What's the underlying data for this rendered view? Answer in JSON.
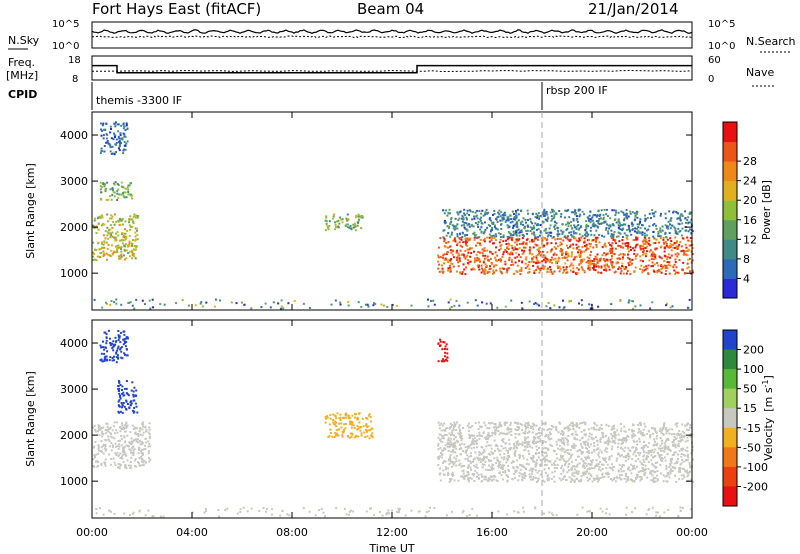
{
  "title": {
    "station": "Fort Hays East (fitACF)",
    "beam": "Beam 04",
    "date": "21/Jan/2014"
  },
  "noise_panel": {
    "left_label": "N.Sky",
    "left_ticks": [
      "10^5",
      "10^0"
    ],
    "right_ticks": [
      "10^5",
      "10^0"
    ],
    "right_label": "N.Search"
  },
  "freq_panel": {
    "left_label_1": "Freq.",
    "left_label_2": "[MHz]",
    "left_ticks": [
      "18",
      "8"
    ],
    "right_ticks": [
      "60",
      "0"
    ],
    "right_label": "Nave"
  },
  "cpid": {
    "label": "CPID",
    "modes": [
      {
        "name": "themis -3300 IF",
        "start_hour": 0
      },
      {
        "name": "rbsp 200 IF",
        "start_hour": 18
      }
    ]
  },
  "x_axis": {
    "label": "Time UT",
    "ticks": [
      "00:00",
      "04:00",
      "08:00",
      "12:00",
      "16:00",
      "20:00",
      "00:00"
    ],
    "range_hours": [
      0,
      24
    ]
  },
  "power_panel": {
    "ylabel": "Slant Range [km]",
    "yticks": [
      "1000",
      "2000",
      "3000",
      "4000"
    ],
    "colorbar_title": "Power [dB]",
    "colorbar_ticks": [
      "4",
      "8",
      "12",
      "16",
      "20",
      "24",
      "28"
    ],
    "colors": [
      "#2a2ad6",
      "#2c6ab8",
      "#3f8a86",
      "#5fa060",
      "#8fbf3a",
      "#e0b020",
      "#f08818",
      "#ec5418",
      "#e81010"
    ]
  },
  "velocity_panel": {
    "ylabel": "Slant Range [km]",
    "yticks": [
      "1000",
      "2000",
      "3000",
      "4000"
    ],
    "colorbar_title_1": "Velocity",
    "colorbar_title_2": "[m s",
    "colorbar_sup": "-1",
    "colorbar_title_3": "]",
    "colorbar_ticks": [
      "200",
      "100",
      "50",
      "15",
      "-15",
      "-50",
      "-100",
      "-200"
    ],
    "colors": [
      "#2244cc",
      "#2c8a3a",
      "#58b838",
      "#a0d060",
      "#c8c8c0",
      "#f0b020",
      "#f07818",
      "#ec4010",
      "#e81010"
    ]
  },
  "chart_data": {
    "type": "heatmap",
    "x_unit": "hours UT",
    "y_unit": "km",
    "ylim": [
      200,
      4500
    ],
    "power_regions": [
      {
        "t0": 0.0,
        "t1": 1.8,
        "r0": 1300,
        "r1": 2300,
        "power": 18
      },
      {
        "t0": 0.3,
        "t1": 1.6,
        "r0": 2600,
        "r1": 3000,
        "power": 14
      },
      {
        "t0": 0.3,
        "t1": 1.4,
        "r0": 3600,
        "r1": 4300,
        "power": 6
      },
      {
        "t0": 9.3,
        "t1": 10.8,
        "r0": 1950,
        "r1": 2300,
        "power": 14
      },
      {
        "t0": 13.8,
        "t1": 24.0,
        "r0": 1000,
        "r1": 1800,
        "power": 26
      },
      {
        "t0": 14.0,
        "t1": 24.0,
        "r0": 1800,
        "r1": 2400,
        "power": 8
      }
    ],
    "velocity_regions": [
      {
        "t0": 0.0,
        "t1": 2.3,
        "r0": 1300,
        "r1": 2300,
        "velocity": 0
      },
      {
        "t0": 1.0,
        "t1": 1.8,
        "r0": 2500,
        "r1": 3200,
        "velocity": 250
      },
      {
        "t0": 0.3,
        "t1": 1.4,
        "r0": 3600,
        "r1": 4300,
        "velocity": 220
      },
      {
        "t0": 9.3,
        "t1": 11.2,
        "r0": 1950,
        "r1": 2500,
        "velocity": -40
      },
      {
        "t0": 13.8,
        "t1": 14.2,
        "r0": 3600,
        "r1": 4100,
        "velocity": -250
      },
      {
        "t0": 13.8,
        "t1": 24.0,
        "r0": 1000,
        "r1": 2300,
        "velocity": 0
      }
    ],
    "frequency_mhz": [
      {
        "t0": 0.0,
        "t1": 1.0,
        "value": 14
      },
      {
        "t0": 1.0,
        "t1": 13.0,
        "value": 11
      },
      {
        "t0": 13.0,
        "t1": 24.0,
        "value": 14
      }
    ]
  }
}
